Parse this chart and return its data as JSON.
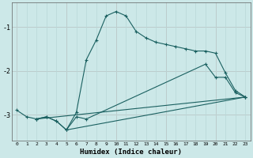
{
  "title": "",
  "xlabel": "Humidex (Indice chaleur)",
  "bg_color": "#cce8e8",
  "line_color": "#1a6060",
  "grid_minor_color": "#b8d8d8",
  "grid_major_color": "#c8a8a8",
  "xlim": [
    -0.5,
    23.5
  ],
  "ylim": [
    -3.6,
    -0.45
  ],
  "yticks": [
    -3,
    -2,
    -1
  ],
  "xticks": [
    0,
    1,
    2,
    3,
    4,
    5,
    6,
    7,
    8,
    9,
    10,
    11,
    12,
    13,
    14,
    15,
    16,
    17,
    18,
    19,
    20,
    21,
    22,
    23
  ],
  "series": [
    {
      "x": [
        0,
        1,
        2,
        3,
        4,
        5,
        6,
        7,
        8,
        9,
        10,
        11,
        12,
        13,
        14,
        15,
        16,
        17,
        18,
        19,
        20,
        21,
        22,
        23
      ],
      "y": [
        -2.9,
        -3.05,
        -3.1,
        -3.05,
        -3.15,
        -3.35,
        -2.95,
        -1.75,
        -1.3,
        -0.75,
        -0.65,
        -0.75,
        -1.1,
        -1.25,
        -1.35,
        -1.4,
        -1.45,
        -1.5,
        -1.55,
        -1.55,
        -1.6,
        -2.05,
        -2.45,
        -2.6
      ]
    },
    {
      "x": [
        2,
        3,
        4,
        5,
        6,
        7,
        19,
        20,
        21,
        22,
        23
      ],
      "y": [
        -3.1,
        -3.05,
        -3.15,
        -3.35,
        -3.05,
        -3.1,
        -1.85,
        -2.15,
        -2.15,
        -2.5,
        -2.6
      ]
    },
    {
      "x": [
        2,
        23
      ],
      "y": [
        -3.1,
        -2.6
      ]
    },
    {
      "x": [
        5,
        23
      ],
      "y": [
        -3.35,
        -2.6
      ]
    }
  ]
}
